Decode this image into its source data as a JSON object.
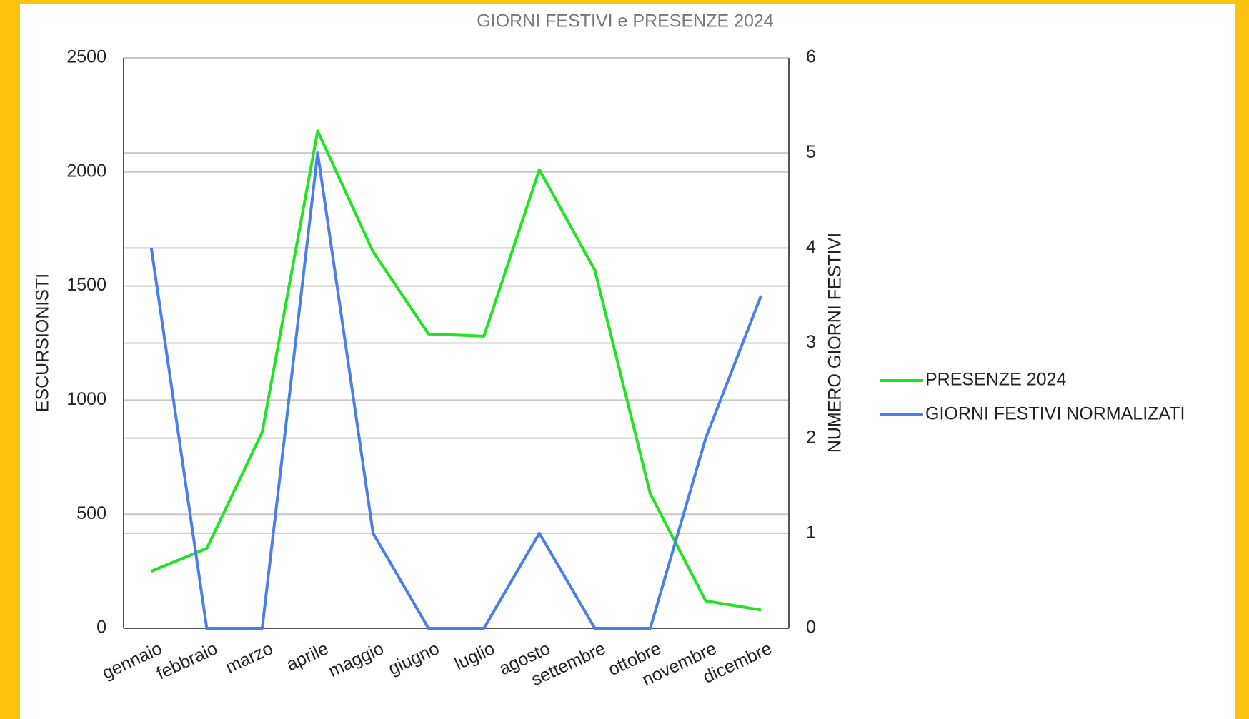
{
  "chart_data": {
    "type": "line",
    "title": "GIORNI FESTIVI e PRESENZE 2024",
    "categories": [
      "gennaio",
      "febbraio",
      "marzo",
      "aprile",
      "maggio",
      "giugno",
      "luglio",
      "agosto",
      "settembre",
      "ottobre",
      "novembre",
      "dicembre"
    ],
    "series": [
      {
        "name": "PRESENZE 2024",
        "color": "#22e322",
        "values": [
          250,
          350,
          860,
          2180,
          1650,
          1290,
          1280,
          2010,
          1570,
          590,
          120,
          80
        ]
      },
      {
        "name": "GIORNI FESTIVI NORMALIZATI",
        "color": "#4a7ee8",
        "axis": "y2",
        "values": [
          4,
          0,
          0,
          5,
          1,
          0,
          0,
          1,
          0,
          0,
          2,
          3.5
        ]
      }
    ],
    "y_label": "ESCURSIONISTI",
    "y2_label": "NUMERO GIORNI FESTIVI",
    "ylim": [
      0,
      2500
    ],
    "yticks": [
      0,
      500,
      1000,
      1500,
      2000,
      2500
    ],
    "y2lim": [
      0,
      6
    ],
    "y2ticks": [
      0,
      1,
      2,
      3,
      4,
      5,
      6
    ],
    "grid": true,
    "legend": "right"
  }
}
